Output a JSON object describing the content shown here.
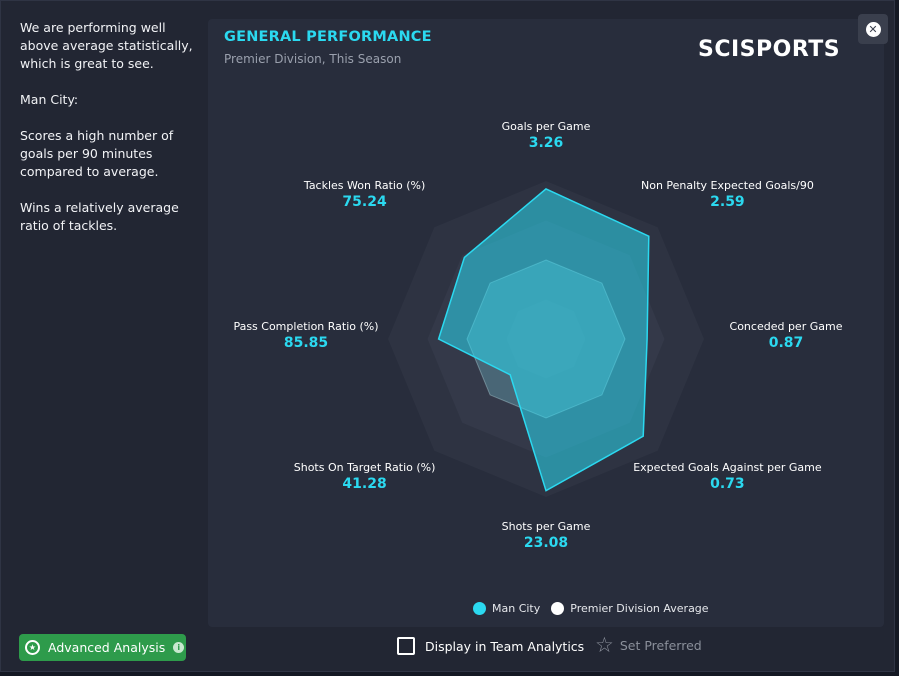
{
  "sidebar": {
    "paragraphs": [
      "We are performing well above average statistically, which is great to see.",
      "Man City:",
      "Scores a high number of goals per 90 minutes compared to average.",
      "Wins a relatively average ratio of tackles."
    ]
  },
  "header": {
    "title": "GENERAL PERFORMANCE",
    "subtitle": "Premier Division, This Season",
    "logo": "SCISPORTS",
    "close_icon": "close-icon"
  },
  "chart_data": {
    "type": "radar",
    "title": "GENERAL PERFORMANCE",
    "subtitle": "Premier Division, This Season",
    "axes": [
      {
        "name": "Goals per Game",
        "value": "3.26"
      },
      {
        "name": "Non Penalty Expected Goals/90",
        "value": "2.59"
      },
      {
        "name": "Conceded per Game",
        "value": "0.87"
      },
      {
        "name": "Expected Goals Against per Game",
        "value": "0.73"
      },
      {
        "name": "Shots per Game",
        "value": "23.08"
      },
      {
        "name": "Shots On Target Ratio (%)",
        "value": "41.28"
      },
      {
        "name": "Pass Completion Ratio (%)",
        "value": "85.85"
      },
      {
        "name": "Tackles Won Ratio (%)",
        "value": "75.24"
      }
    ],
    "series": [
      {
        "name": "Man City",
        "color": "#2bd9f0",
        "normalized": [
          0.95,
          0.92,
          0.64,
          0.87,
          0.96,
          0.32,
          0.68,
          0.73
        ]
      },
      {
        "name": "Premier Division Average",
        "color": "#ffffff",
        "normalized": [
          0.5,
          0.5,
          0.5,
          0.5,
          0.5,
          0.5,
          0.5,
          0.5
        ]
      }
    ],
    "scale": [
      0,
      1
    ],
    "rings": 4,
    "legend_position": "bottom"
  },
  "legend": {
    "items": [
      {
        "label": "Man City",
        "color": "#2bd9f0"
      },
      {
        "label": "Premier Division Average",
        "color": "#ffffff"
      }
    ]
  },
  "footer": {
    "advanced_analysis": "Advanced Analysis",
    "display_in_team_analytics": "Display in Team Analytics",
    "set_preferred": "Set Preferred"
  },
  "colors": {
    "accent": "#2bd9f0",
    "button_green": "#2e9b4b",
    "panel": "#282d3c"
  }
}
